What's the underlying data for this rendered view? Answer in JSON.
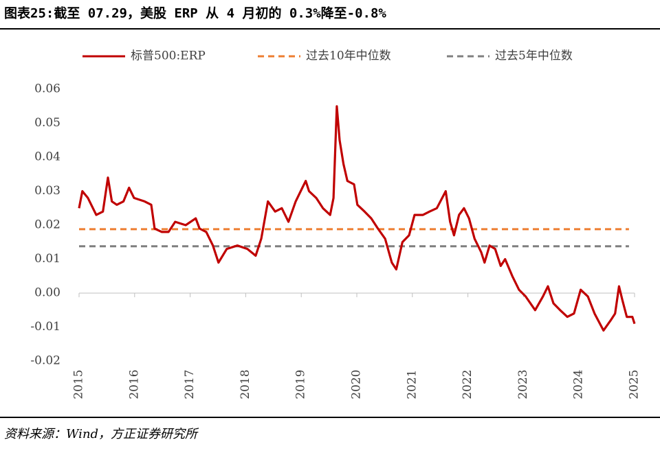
{
  "title": "图表25:截至 07.29，美股 ERP 从 4 月初的 0.3%降至-0.8%",
  "source": "资料来源：Wind，方正证券研究所",
  "chart_data": {
    "type": "line",
    "xlim": [
      2015,
      2025
    ],
    "xticks": [
      2015,
      2016,
      2017,
      2018,
      2019,
      2020,
      2021,
      2022,
      2023,
      2024,
      2025
    ],
    "ylim": [
      -0.02,
      0.06
    ],
    "yticks": [
      0.06,
      0.05,
      0.04,
      0.03,
      0.02,
      0.01,
      {
        "value": 0,
        "label": "0.00"
      },
      -0.01,
      -0.02
    ],
    "grid": false,
    "legend": "top",
    "series": [
      {
        "name": "标普500:ERP",
        "color": "#c00000",
        "dash": false,
        "x": [
          2015.0,
          2015.06,
          2015.16,
          2015.25,
          2015.31,
          2015.43,
          2015.52,
          2015.59,
          2015.68,
          2015.8,
          2015.9,
          2015.99,
          2016.18,
          2016.3,
          2016.36,
          2016.49,
          2016.61,
          2016.73,
          2016.92,
          2017.1,
          2017.17,
          2017.29,
          2017.41,
          2017.51,
          2017.66,
          2017.85,
          2018.03,
          2018.18,
          2018.28,
          2018.4,
          2018.53,
          2018.65,
          2018.77,
          2018.9,
          2019.02,
          2019.08,
          2019.14,
          2019.27,
          2019.39,
          2019.52,
          2019.58,
          2019.64,
          2019.69,
          2019.76,
          2019.83,
          2019.95,
          2020.01,
          2020.14,
          2020.26,
          2020.38,
          2020.51,
          2020.63,
          2020.71,
          2020.82,
          2020.94,
          2021.04,
          2021.19,
          2021.31,
          2021.44,
          2021.6,
          2021.68,
          2021.75,
          2021.84,
          2021.93,
          2022.02,
          2022.12,
          2022.24,
          2022.3,
          2022.39,
          2022.49,
          2022.59,
          2022.67,
          2022.8,
          2022.92,
          2023.04,
          2023.21,
          2023.35,
          2023.44,
          2023.54,
          2023.66,
          2023.79,
          2023.91,
          2024.03,
          2024.16,
          2024.28,
          2024.44,
          2024.57,
          2024.65,
          2024.72,
          2024.78,
          2024.86,
          2024.96,
          2025.0
        ],
        "values": [
          0.025,
          0.03,
          0.028,
          0.025,
          0.023,
          0.024,
          0.034,
          0.027,
          0.026,
          0.027,
          0.031,
          0.028,
          0.027,
          0.026,
          0.019,
          0.018,
          0.018,
          0.021,
          0.02,
          0.022,
          0.019,
          0.018,
          0.014,
          0.009,
          0.013,
          0.014,
          0.013,
          0.011,
          0.016,
          0.027,
          0.024,
          0.025,
          0.021,
          0.027,
          0.031,
          0.033,
          0.03,
          0.028,
          0.025,
          0.023,
          0.028,
          0.055,
          0.045,
          0.038,
          0.033,
          0.032,
          0.026,
          0.024,
          0.022,
          0.019,
          0.016,
          0.009,
          0.007,
          0.015,
          0.017,
          0.023,
          0.023,
          0.024,
          0.025,
          0.03,
          0.021,
          0.017,
          0.023,
          0.025,
          0.022,
          0.016,
          0.012,
          0.009,
          0.014,
          0.013,
          0.008,
          0.01,
          0.005,
          0.001,
          -0.001,
          -0.005,
          -0.001,
          0.002,
          -0.003,
          -0.005,
          -0.007,
          -0.006,
          0.001,
          -0.001,
          -0.006,
          -0.011,
          -0.008,
          -0.006,
          0.002,
          -0.002,
          -0.007,
          -0.007,
          -0.009
        ]
      },
      {
        "name": "过去10年中位数",
        "color": "#ed7d31",
        "dash": true,
        "x": [
          2015,
          2024.9
        ],
        "values": [
          0.0188,
          0.0188
        ]
      },
      {
        "name": "过去5年中位数",
        "color": "#7f7f7f",
        "dash": true,
        "x": [
          2015,
          2024.9
        ],
        "values": [
          0.0138,
          0.0138
        ]
      }
    ]
  }
}
